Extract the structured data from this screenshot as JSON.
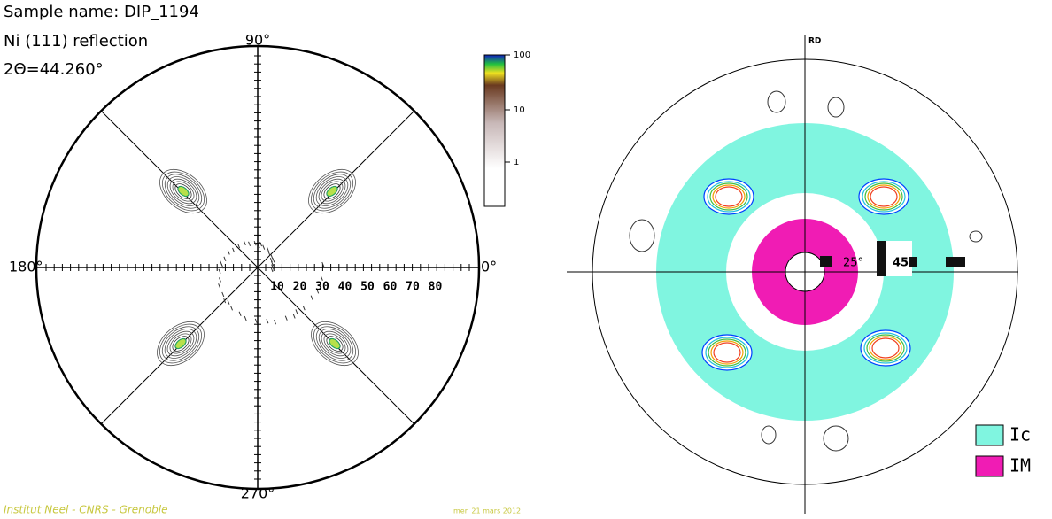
{
  "left_figure": {
    "header": {
      "sample": "Sample name: DIP_1194",
      "reflection": "Ni (111) reflection",
      "two_theta": "2Θ=44.260°"
    },
    "angle_labels": {
      "top": "90°",
      "left": "180°",
      "right": "0°",
      "bottom": "270°"
    },
    "radial_labels": [
      "10",
      "20",
      "30",
      "40",
      "50",
      "60",
      "70",
      "80"
    ],
    "colorbar": {
      "labels": [
        "100",
        "10",
        "1"
      ]
    },
    "footer": {
      "institute": "Institut Neel - CNRS - Grenoble",
      "date": "mer. 21 mars 2012"
    }
  },
  "right_figure": {
    "axis_label": "RD",
    "angle_labels": [
      "25°",
      "45"
    ],
    "legend": [
      {
        "label": "Ic",
        "color": "#80f5e0"
      },
      {
        "label": "IM",
        "color": "#f01cb4"
      }
    ]
  }
}
